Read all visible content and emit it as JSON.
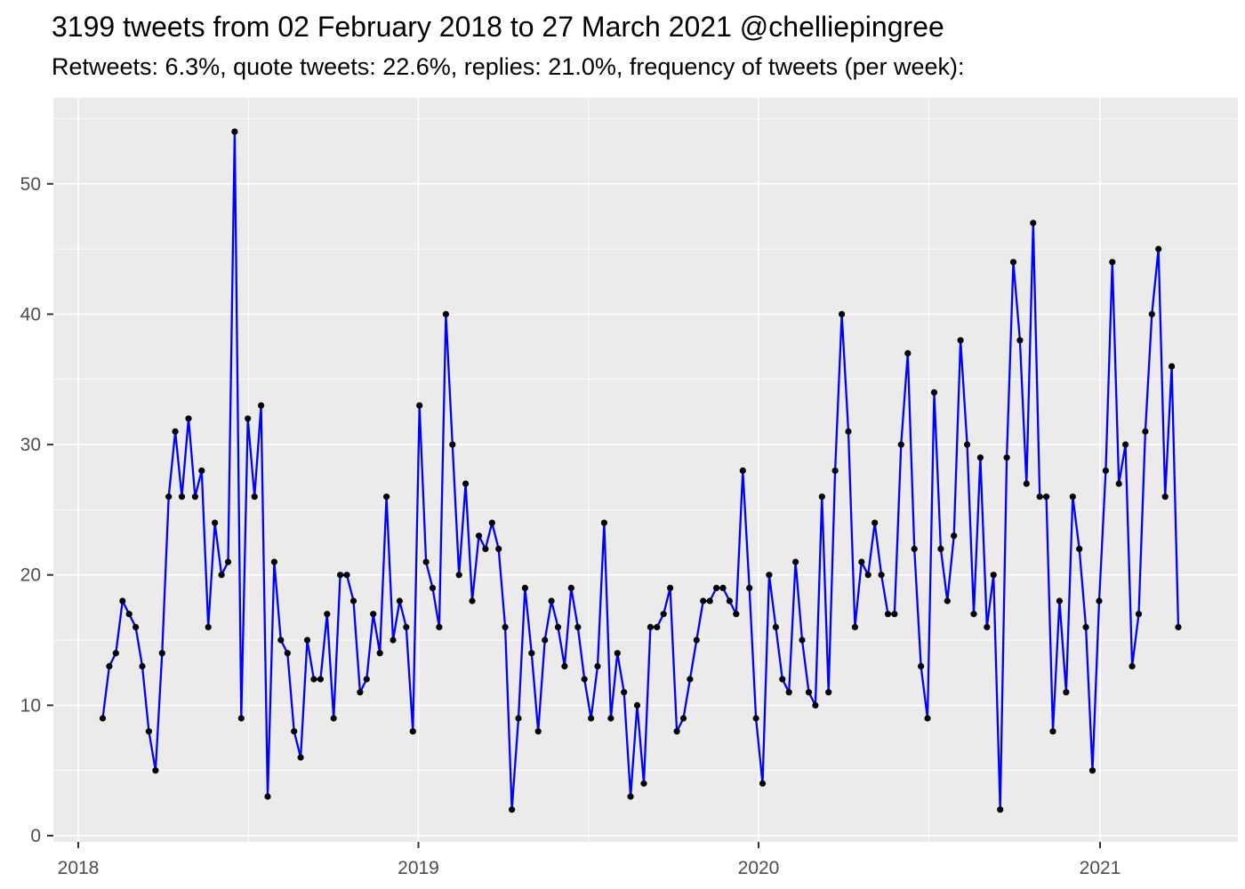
{
  "header": {
    "title": "3199 tweets from 02 February 2018 to 27 March 2021 @chelliepingree",
    "subtitle": "Retweets: 6.3%, quote tweets: 22.6%, replies: 21.0%, frequency of tweets (per week):"
  },
  "chart_data": {
    "type": "line",
    "title": "3199 tweets from 02 February 2018 to 27 March 2021 @chelliepingree",
    "subtitle": "Retweets: 6.3%, quote tweets: 22.6%, replies: 21.0%, frequency of tweets (per week):",
    "series_name": "tweets-per-week",
    "x_unit": "week",
    "x_range_label": "02 February 2018 to 27 March 2021",
    "x_tick_labels": [
      "2018",
      "2019",
      "2020",
      "2021"
    ],
    "y_tick_labels": [
      "0",
      "10",
      "20",
      "30",
      "40",
      "50"
    ],
    "y_major_ticks": [
      0,
      10,
      20,
      30,
      40,
      50
    ],
    "y_minor_ticks": [
      5,
      15,
      25,
      35,
      45,
      55
    ],
    "ylim": [
      0,
      56
    ],
    "grid": "major-and-minor, white on gray panel",
    "legend": "none",
    "values": [
      9,
      13,
      14,
      18,
      17,
      16,
      13,
      8,
      5,
      14,
      26,
      31,
      26,
      32,
      26,
      28,
      16,
      24,
      20,
      21,
      54,
      9,
      32,
      26,
      33,
      3,
      21,
      15,
      14,
      8,
      6,
      15,
      12,
      12,
      17,
      9,
      20,
      20,
      18,
      11,
      12,
      17,
      14,
      26,
      15,
      18,
      16,
      8,
      33,
      21,
      19,
      16,
      40,
      30,
      20,
      27,
      18,
      23,
      22,
      24,
      22,
      16,
      2,
      9,
      19,
      14,
      8,
      15,
      18,
      16,
      13,
      19,
      16,
      12,
      9,
      13,
      24,
      9,
      14,
      11,
      3,
      10,
      4,
      16,
      16,
      17,
      19,
      8,
      9,
      12,
      15,
      18,
      18,
      19,
      19,
      18,
      17,
      28,
      19,
      9,
      4,
      20,
      16,
      12,
      11,
      21,
      15,
      11,
      10,
      26,
      11,
      28,
      40,
      31,
      16,
      21,
      20,
      24,
      20,
      17,
      17,
      30,
      37,
      22,
      13,
      9,
      34,
      22,
      18,
      23,
      38,
      30,
      17,
      29,
      16,
      20,
      2,
      29,
      44,
      38,
      27,
      47,
      26,
      26,
      8,
      18,
      11,
      26,
      22,
      16,
      5,
      18,
      28,
      44,
      27,
      30,
      13,
      17,
      31,
      40,
      45,
      26,
      36,
      16
    ],
    "colors": {
      "line": "#0000FF",
      "point": "#000000",
      "panel_background": "#EBEBEB",
      "gridline": "#FFFFFF",
      "axis_text": "#4D4D4D",
      "tick_mark": "#333333",
      "title_text": "#000000"
    }
  }
}
